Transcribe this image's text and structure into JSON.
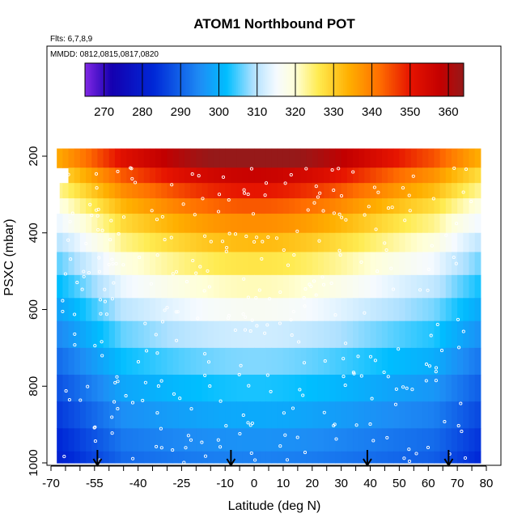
{
  "chart_data": {
    "type": "heatmap",
    "title": "ATOM1 Northbound POT",
    "annotations": [
      "Flts: 6,7,8,9",
      "MMDD: 0812,0815,0817,0820"
    ],
    "xlabel": "Latitude (deg N)",
    "ylabel": "PSXC (mbar)",
    "xlim": [
      -70,
      80
    ],
    "ylim": [
      1000,
      150
    ],
    "y_reversed": true,
    "x_ticks": [
      -70,
      -55,
      -40,
      -25,
      -10,
      0,
      10,
      20,
      30,
      40,
      50,
      60,
      70,
      80
    ],
    "x_tick_labels": [
      "-70",
      "-55",
      "-40",
      "-25",
      "-10",
      "0",
      "10",
      "20",
      "30",
      "40",
      "50",
      "60",
      "70",
      "80"
    ],
    "y_ticks": [
      200,
      400,
      600,
      800,
      1000
    ],
    "y_tick_labels": [
      "200",
      "400",
      "600",
      "800",
      "1000"
    ],
    "colorbar": {
      "range": [
        265,
        364
      ],
      "ticks": [
        270,
        280,
        290,
        300,
        310,
        320,
        330,
        340,
        350,
        360
      ],
      "tick_labels": [
        "270",
        "280",
        "290",
        "300",
        "310",
        "320",
        "330",
        "340",
        "350",
        "360"
      ]
    },
    "latitude_range": [
      -68,
      78
    ],
    "pressure_levels": [
      180,
      230,
      270,
      310,
      350,
      400,
      450,
      510,
      570,
      630,
      700,
      770,
      840,
      910,
      970,
      1000
    ],
    "arrow_latitudes": [
      -54,
      -8,
      39,
      67
    ],
    "grid": false,
    "legend": "colorbar top"
  }
}
